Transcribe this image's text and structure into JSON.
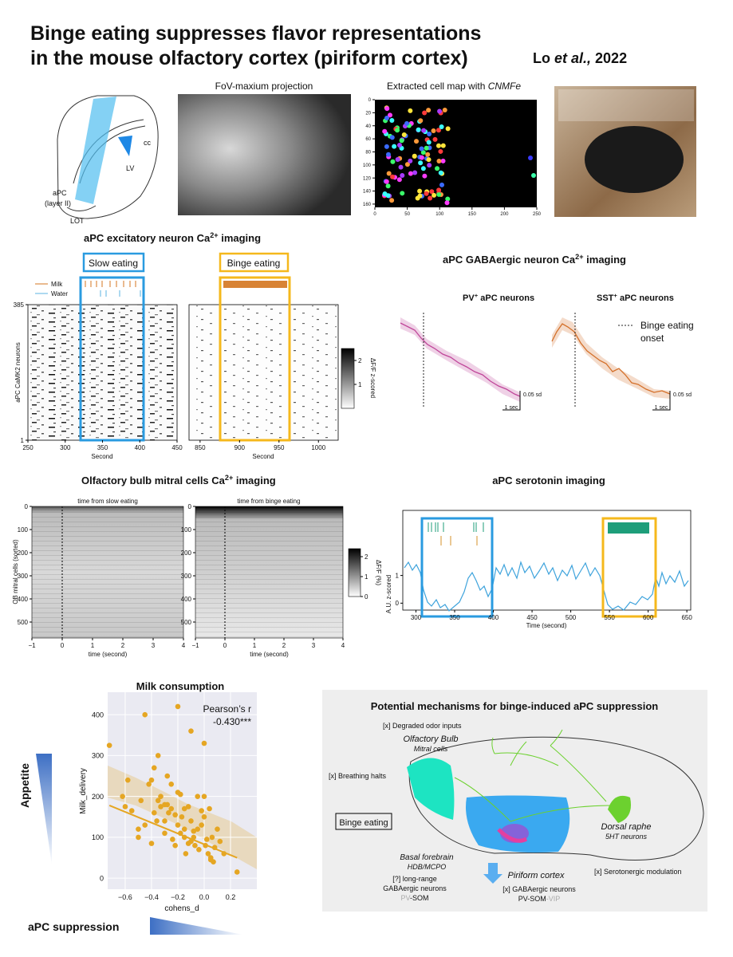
{
  "header": {
    "title_line1": "Binge eating suppresses flavor representations",
    "title_line2": "in the mouse olfactory cortex (piriform cortex)",
    "author": "Lo ",
    "etal": "et al.,",
    "year": " 2022"
  },
  "anatomy": {
    "cc": "cc",
    "lv": "LV",
    "apc": "aPC",
    "layer": "(layer II)",
    "lot": "LOT"
  },
  "fov": {
    "title": "FoV-maxium projection"
  },
  "cellmap": {
    "title": "Extracted cell map with ",
    "title_em": "CNMFe",
    "xlim": [
      0,
      250
    ],
    "xticks": [
      0,
      50,
      100,
      150,
      200,
      250
    ],
    "ylim": [
      0,
      165
    ],
    "yticks": [
      0,
      20,
      40,
      60,
      80,
      100,
      120,
      140,
      160
    ]
  },
  "excitatory": {
    "title": "aPC excitatory neuron Ca",
    "title_sup": "2+",
    "title_end": " imaging",
    "slow_label": "Slow eating",
    "binge_label": "Binge eating",
    "legend": [
      {
        "name": "Milk",
        "color": "#d4761f"
      },
      {
        "name": "Water",
        "color": "#5bb3e0"
      }
    ],
    "ylabel": "aPC CaMK2 neurons",
    "ylim": [
      1,
      385
    ],
    "yticks": [
      1,
      385
    ],
    "xlabel": "Second",
    "left": {
      "xlim": [
        250,
        450
      ],
      "xticks": [
        250,
        300,
        350,
        400,
        450
      ],
      "box_color": "#2a9be0"
    },
    "right": {
      "xlim": [
        836,
        1025
      ],
      "xticks": [
        850,
        900,
        950,
        1000
      ],
      "box_color": "#f5b81c"
    },
    "colorbar": {
      "label": "ΔF/F z-scored",
      "lim": [
        0,
        2.5
      ],
      "ticks": [
        1,
        2
      ]
    }
  },
  "gaba": {
    "title": "aPC GABAergic neuron Ca",
    "title_sup": "2+",
    "title_end": " imaging",
    "pv": {
      "name": "PV",
      "sup": "+",
      "rest": " aPC neurons",
      "color": "#c0479a"
    },
    "sst": {
      "name": "SST",
      "sup": "+",
      "rest": " aPC neurons",
      "color": "#d4702a"
    },
    "legend": [
      "Binge eating",
      "onset"
    ],
    "scale_y": "0.05 sd",
    "scale_x": "1 sec"
  },
  "ob": {
    "title": "Olfactory bulb mitral cells Ca",
    "title_sup": "2+",
    "title_end": " imaging",
    "left_title": "time from slow eating",
    "right_title": "time from binge eating",
    "ylabel": "OB mitral cells (sorted)",
    "xlabel": "time (second)",
    "ylim": [
      0,
      569
    ],
    "yticks": [
      0,
      100,
      200,
      300,
      400,
      500
    ],
    "xlim": [
      -1,
      4
    ],
    "xticks": [
      {
        "value": -1,
        "label": "−1"
      },
      0,
      1,
      2,
      3,
      4
    ],
    "colorbar": {
      "label": "ΔF/F (%)",
      "lim": [
        0,
        2.4
      ],
      "ticks": [
        0,
        1,
        2
      ]
    }
  },
  "serotonin": {
    "title": "aPC serotonin imaging",
    "ylabel": "A.U. z-scored",
    "xlabel": "Time (second)",
    "xlim": [
      283,
      655
    ],
    "xticks": [
      300,
      350,
      400,
      450,
      500,
      550,
      600,
      650
    ],
    "ylim": [
      -0.25,
      3.35
    ],
    "yticks": [
      0,
      1
    ],
    "color": "#3ea3dc"
  },
  "milk": {
    "title": "Milk consumption",
    "xlabel": "cohens_d",
    "ylabel": "Milk_delivery",
    "annotation": [
      "Pearson’s r",
      "-0.430***"
    ],
    "xlim": [
      -0.733,
      0.4
    ],
    "xticks": [
      {
        "value": -0.6,
        "label": "−0.6"
      },
      {
        "value": -0.4,
        "label": "−0.4"
      },
      {
        "value": -0.2,
        "label": "−0.2"
      },
      {
        "value": 0,
        "label": "0.0"
      },
      0.2
    ],
    "ylim": [
      -27,
      455
    ],
    "yticks": [
      0,
      100,
      200,
      300,
      400
    ],
    "color": "#e5a623",
    "x": [
      -0.72,
      -0.62,
      -0.6,
      -0.58,
      -0.55,
      -0.5,
      -0.48,
      -0.45,
      -0.42,
      -0.4,
      -0.38,
      -0.36,
      -0.35,
      -0.33,
      -0.3,
      -0.3,
      -0.28,
      -0.27,
      -0.25,
      -0.24,
      -0.22,
      -0.2,
      -0.2,
      -0.18,
      -0.17,
      -0.15,
      -0.14,
      -0.12,
      -0.1,
      -0.1,
      -0.08,
      -0.07,
      -0.05,
      -0.04,
      -0.02,
      0.0,
      0.0,
      0.02,
      0.03,
      0.05,
      0.06,
      0.08,
      0.1,
      0.12,
      0.15,
      -0.45,
      -0.4,
      -0.35,
      -0.3,
      -0.25,
      -0.22,
      -0.18,
      -0.15,
      -0.12,
      -0.08,
      -0.05,
      -0.02,
      0.01,
      0.04,
      0.07,
      -0.33,
      -0.28,
      -0.5,
      -0.2,
      0.25,
      -0.1,
      -0.38,
      -0.15,
      0.0,
      0.05
    ],
    "y": [
      325,
      200,
      175,
      240,
      165,
      120,
      190,
      400,
      230,
      85,
      270,
      140,
      300,
      175,
      180,
      110,
      250,
      160,
      170,
      95,
      80,
      130,
      420,
      205,
      150,
      100,
      60,
      175,
      140,
      90,
      115,
      80,
      120,
      70,
      165,
      200,
      330,
      95,
      60,
      50,
      100,
      75,
      120,
      90,
      60,
      130,
      240,
      190,
      140,
      230,
      155,
      110,
      120,
      85,
      100,
      200,
      130,
      80,
      170,
      40,
      200,
      180,
      100,
      210,
      15,
      360,
      160,
      170,
      150,
      45
    ],
    "fit": {
      "x": [
        -0.72,
        0.25
      ],
      "y": [
        178,
        50
      ]
    }
  },
  "appetite": "Appetite",
  "suppression": "aPC suppression",
  "mechanism": {
    "title": "Potential mechanisms for binge-induced aPC suppression",
    "odor": "[x] Degraded odor inputs",
    "ob_name": "Olfactory Bulb",
    "ob_cells": "Mitral cells",
    "breathing": "[x] Breathing halts",
    "binge": "Binge eating",
    "raphe": "Dorsal raphe",
    "raphe_cells": "5HT neurons",
    "bf": "Basal forebrain",
    "bf_sub": "HDB/MCPO",
    "bf_line1": "[?] long-range",
    "bf_line2": "GABAergic neurons",
    "bf_faded": "PV",
    "bf_rest": "-SOM",
    "pir": "Piriform cortex",
    "pir_line1": "[x] GABAergic neurons",
    "pir_main": "PV-SOM",
    "pir_faded": "-VIP",
    "serotonergic": "[x] Serotonergic modulation"
  }
}
